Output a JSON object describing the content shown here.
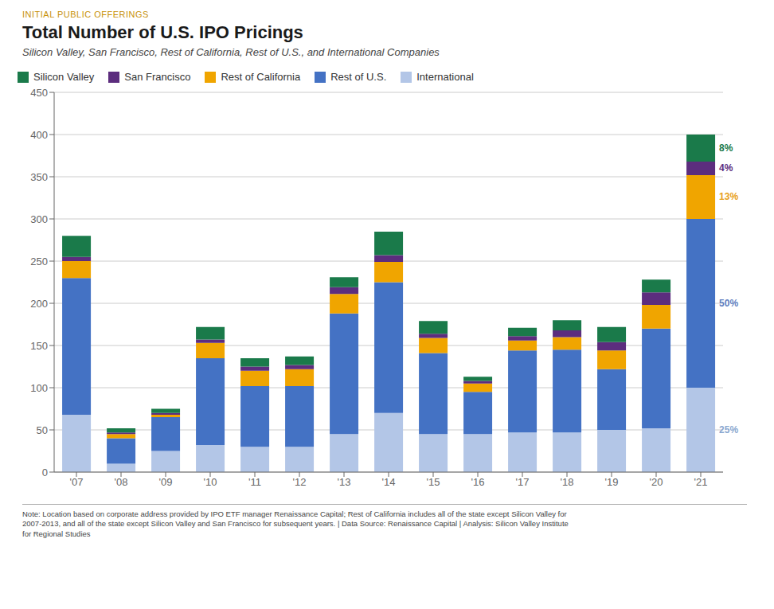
{
  "chart_data": {
    "type": "bar",
    "stacked": true,
    "suptitle": "INITIAL PUBLIC OFFERINGS",
    "title": "Total Number of U.S. IPO Pricings",
    "subtitle": "Silicon Valley, San Francisco, Rest of California, Rest of U.S., and International Companies",
    "note": "Note: Location based on corporate address provided by IPO ETF manager Renaissance Capital; Rest of California includes all of the state except Silicon Valley for\n2007-2013, and all of the state except Silicon Valley and San Francisco for subsequent years.  |  Data Source: Renaissance Capital  |  Analysis: Silicon Valley Institute\nfor Regional Studies",
    "categories": [
      "'07",
      "'08",
      "'09",
      "'10",
      "'11",
      "'12",
      "'13",
      "'14",
      "'15",
      "'16",
      "'17",
      "'18",
      "'19",
      "'20",
      "'21"
    ],
    "series": [
      {
        "name": "International",
        "color": "#b3c6e7",
        "values": [
          68,
          10,
          25,
          32,
          30,
          30,
          45,
          70,
          45,
          45,
          47,
          47,
          50,
          52,
          100
        ]
      },
      {
        "name": "Rest of U.S.",
        "color": "#4472c4",
        "values": [
          162,
          30,
          40,
          103,
          72,
          72,
          143,
          155,
          96,
          50,
          97,
          98,
          72,
          118,
          200
        ]
      },
      {
        "name": "Rest of California",
        "color": "#f0a500",
        "values": [
          20,
          5,
          3,
          18,
          18,
          20,
          23,
          24,
          18,
          10,
          12,
          15,
          22,
          28,
          52
        ]
      },
      {
        "name": "San Francisco",
        "color": "#5c2d7e",
        "values": [
          5,
          2,
          2,
          4,
          5,
          5,
          8,
          8,
          5,
          3,
          5,
          8,
          10,
          15,
          16
        ]
      },
      {
        "name": "Silicon Valley",
        "color": "#1a7a4a",
        "values": [
          25,
          5,
          5,
          15,
          10,
          10,
          12,
          28,
          15,
          5,
          10,
          12,
          18,
          15,
          32
        ]
      }
    ],
    "annotations": [
      {
        "text": "8%",
        "series": "Silicon Valley",
        "category": "'21",
        "color": "#1a7a4a"
      },
      {
        "text": "4%",
        "series": "San Francisco",
        "category": "'21",
        "color": "#5c2d7e"
      },
      {
        "text": "13%",
        "series": "Rest of California",
        "category": "'21",
        "color": "#e8a020"
      },
      {
        "text": "50%",
        "series": "Rest of U.S.",
        "category": "'21",
        "color": "#6080c0"
      },
      {
        "text": "25%",
        "series": "International",
        "category": "'21",
        "color": "#8aa8d0"
      }
    ],
    "ylim": [
      0,
      450
    ],
    "yticks": [
      0,
      50,
      100,
      150,
      200,
      250,
      300,
      350,
      400,
      450
    ],
    "grid": true,
    "legend": "top"
  }
}
